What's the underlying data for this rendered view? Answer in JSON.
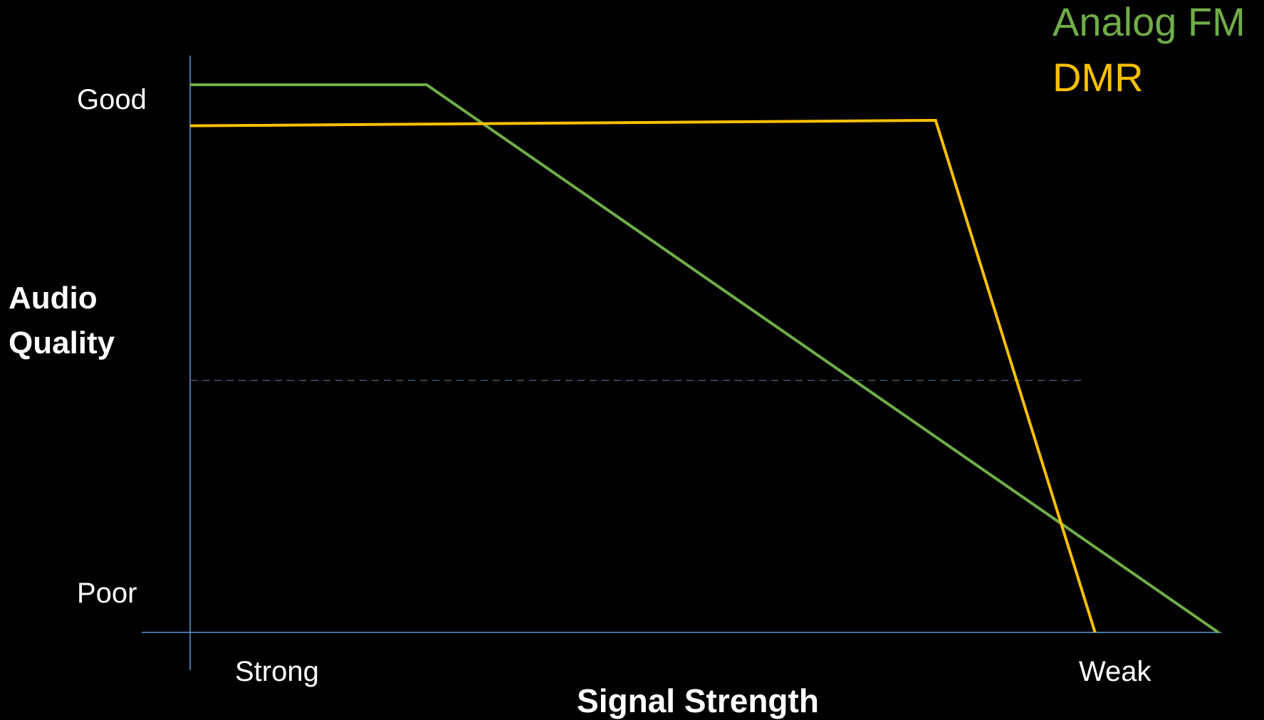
{
  "chart_data": {
    "type": "line",
    "xlabel": "Signal Strength",
    "ylabel_lines": [
      "Audio",
      "Quality"
    ],
    "x_tick_labels": [
      "Strong",
      "Weak"
    ],
    "y_tick_labels": [
      "Good",
      "Poor"
    ],
    "xlim": [
      0,
      100
    ],
    "ylim": [
      0,
      100
    ],
    "threshold_y": 46,
    "grid": false,
    "legend_position": "top-right",
    "series": [
      {
        "name": "Analog FM",
        "color": "#70ad47",
        "points": [
          [
            0,
            100
          ],
          [
            23,
            100
          ],
          [
            100,
            0
          ]
        ]
      },
      {
        "name": "DMR",
        "color": "#ffc000",
        "points": [
          [
            0,
            92.5
          ],
          [
            72.5,
            93.5
          ],
          [
            88,
            0
          ]
        ]
      }
    ],
    "axis_color": "#5b9bd5",
    "threshold_color": "#44546a"
  }
}
